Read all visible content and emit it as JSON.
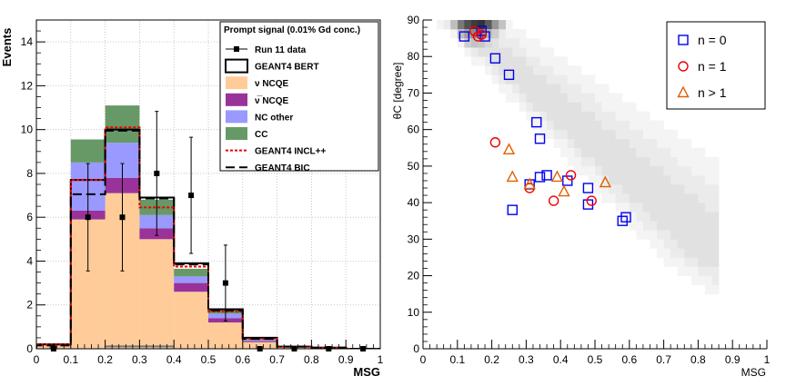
{
  "chart_data": [
    {
      "type": "bar",
      "subtype": "stacked-histogram",
      "ylabel": "Events",
      "xlabel": "MSG",
      "xlim": [
        0,
        1
      ],
      "ylim": [
        0,
        15
      ],
      "x_ticks": [
        "0",
        "0.1",
        "0.2",
        "0.3",
        "0.4",
        "0.5",
        "0.6",
        "0.7",
        "0.8",
        "0.9",
        "1"
      ],
      "y_ticks": [
        "0",
        "2",
        "4",
        "6",
        "8",
        "10",
        "12",
        "14"
      ],
      "bin_edges": [
        0,
        0.1,
        0.2,
        0.3,
        0.4,
        0.5,
        0.6,
        0.7,
        0.8,
        0.9,
        1.0
      ],
      "legend_title": "Prompt signal (0.01% Gd conc.)",
      "series": [
        {
          "name": "ν NCQE",
          "color": "#ffcc99",
          "values": [
            0.15,
            5.9,
            7.1,
            5.0,
            2.6,
            1.2,
            0.3,
            0.05,
            0.02,
            0.0
          ]
        },
        {
          "name": "ν̅ NCQE",
          "color": "#993399",
          "values": [
            0.02,
            0.4,
            0.7,
            0.5,
            0.4,
            0.2,
            0.05,
            0.0,
            0.0,
            0.0
          ]
        },
        {
          "name": "NC other",
          "color": "#9999ff",
          "values": [
            0.05,
            2.2,
            1.6,
            0.6,
            0.3,
            0.2,
            0.05,
            0.0,
            0.0,
            0.0
          ]
        },
        {
          "name": "CC",
          "color": "#669966",
          "values": [
            0.02,
            1.05,
            1.7,
            0.7,
            0.35,
            0.2,
            0.05,
            0.0,
            0.0,
            0.0
          ]
        }
      ],
      "line_series": [
        {
          "name": "GEANT4 BERT",
          "values": [
            0.2,
            7.7,
            10.0,
            6.9,
            3.9,
            1.8,
            0.5,
            0.1,
            0.05,
            0.0
          ]
        },
        {
          "name": "GEANT4 INCL++",
          "values": [
            0.2,
            7.7,
            10.1,
            6.45,
            3.75,
            1.7,
            0.45,
            0.1,
            0.05,
            0.0
          ]
        },
        {
          "name": "GEANT4 BIC",
          "values": [
            0.15,
            7.05,
            9.95,
            6.85,
            3.85,
            1.75,
            0.45,
            0.1,
            0.05,
            0.0
          ]
        }
      ],
      "data_points": {
        "name": "Run 11 data",
        "x": [
          0.05,
          0.15,
          0.25,
          0.35,
          0.45,
          0.55,
          0.65,
          0.75,
          0.85,
          0.95
        ],
        "y": [
          0,
          6,
          6,
          8,
          7,
          3,
          0,
          0,
          0,
          0
        ],
        "err": [
          0,
          2.45,
          2.45,
          2.83,
          2.65,
          1.73,
          0,
          0,
          0,
          0
        ]
      }
    },
    {
      "type": "scatter",
      "subtype": "scatter-over-heatmap",
      "ylabel": "θC [degree]",
      "xlabel": "MSG",
      "xlim": [
        0,
        1
      ],
      "ylim": [
        0,
        90
      ],
      "x_ticks": [
        "0",
        "0.1",
        "0.2",
        "0.3",
        "0.4",
        "0.5",
        "0.6",
        "0.7",
        "0.8",
        "0.9",
        "1"
      ],
      "y_ticks": [
        "0",
        "10",
        "20",
        "30",
        "40",
        "50",
        "60",
        "70",
        "80",
        "90"
      ],
      "series": [
        {
          "name": "n = 0",
          "marker": "square",
          "color": "#0000ee",
          "x": [
            0.12,
            0.17,
            0.18,
            0.21,
            0.25,
            0.26,
            0.31,
            0.33,
            0.34,
            0.34,
            0.36,
            0.42,
            0.48,
            0.48,
            0.58,
            0.59
          ],
          "y": [
            85.5,
            87,
            85.5,
            79.5,
            75,
            38,
            45,
            62,
            57.5,
            47,
            47.5,
            46,
            44,
            39.5,
            35,
            36
          ]
        },
        {
          "name": "n = 1",
          "marker": "circle",
          "color": "#ee0000",
          "x": [
            0.15,
            0.16,
            0.17,
            0.21,
            0.31,
            0.38,
            0.43,
            0.49
          ],
          "y": [
            87,
            85.5,
            86,
            56.5,
            44,
            40.5,
            47.5,
            40.5
          ]
        },
        {
          "name": "n > 1",
          "marker": "triangle",
          "color": "#e06000",
          "x": [
            0.25,
            0.26,
            0.31,
            0.39,
            0.41,
            0.53
          ],
          "y": [
            54.5,
            47,
            45,
            47,
            43,
            45.5
          ]
        }
      ]
    }
  ]
}
